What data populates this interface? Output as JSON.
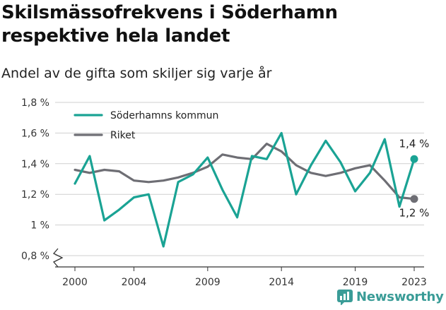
{
  "header": {
    "title": "Skilsmässofrekvens i Söderhamn respektive hela landet",
    "subtitle": "Andel av de gifta som skiljer sig varje år"
  },
  "brand": {
    "name": "Newsworthy"
  },
  "colors": {
    "teal": "#1aa394",
    "gray": "#6e6e74",
    "grid": "#cfcfcf",
    "brand": "#3a9c97"
  },
  "chart_data": {
    "type": "line",
    "title": "Skilsmässofrekvens i Söderhamn respektive hela landet",
    "subtitle": "Andel av de gifta som skiljer sig varje år",
    "xlabel": "",
    "ylabel": "",
    "x": [
      2000,
      2001,
      2002,
      2003,
      2004,
      2005,
      2006,
      2007,
      2008,
      2009,
      2010,
      2011,
      2012,
      2013,
      2014,
      2015,
      2016,
      2017,
      2018,
      2019,
      2020,
      2021,
      2022,
      2023
    ],
    "x_ticks": [
      2000,
      2004,
      2009,
      2014,
      2019,
      2023
    ],
    "x_tick_labels": [
      "2000",
      "2004",
      "2009",
      "2014",
      "2019",
      "2023"
    ],
    "y_ticks": [
      0.8,
      1.0,
      1.2,
      1.4,
      1.6,
      1.8
    ],
    "y_tick_labels": [
      "0,8 %",
      "1 %",
      "1,2 %",
      "1,4 %",
      "1,6 %",
      "1,8 %"
    ],
    "ylim": [
      0.8,
      1.8
    ],
    "xlim": [
      2000,
      2023
    ],
    "grid": "horizontal",
    "axis_break": true,
    "legend_position": "top-left",
    "series": [
      {
        "name": "Söderhamns kommun",
        "color": "#1aa394",
        "values": [
          1.27,
          1.45,
          1.03,
          1.1,
          1.18,
          1.2,
          0.86,
          1.28,
          1.33,
          1.44,
          1.23,
          1.05,
          1.45,
          1.43,
          1.6,
          1.2,
          1.39,
          1.55,
          1.41,
          1.22,
          1.34,
          1.56,
          1.12,
          1.43
        ],
        "end_label": "1,4 %"
      },
      {
        "name": "Riket",
        "color": "#6e6e74",
        "values": [
          1.36,
          1.34,
          1.36,
          1.35,
          1.29,
          1.28,
          1.29,
          1.31,
          1.34,
          1.38,
          1.46,
          1.44,
          1.43,
          1.53,
          1.48,
          1.39,
          1.34,
          1.32,
          1.34,
          1.37,
          1.39,
          1.29,
          1.18,
          1.17
        ],
        "end_label": "1,2 %"
      }
    ]
  }
}
